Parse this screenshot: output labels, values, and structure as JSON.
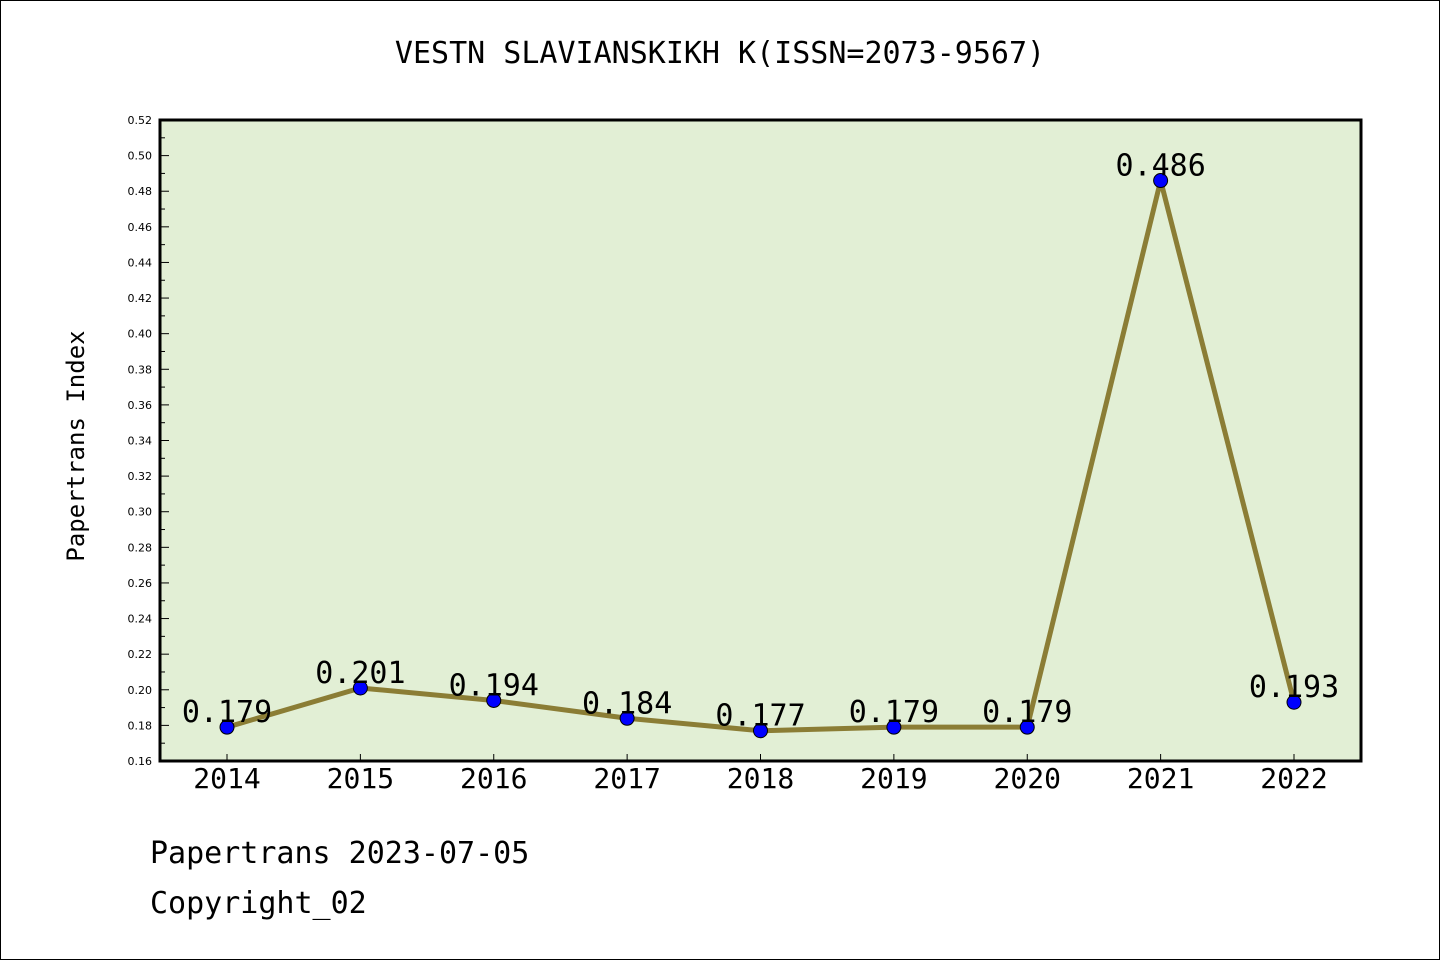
{
  "chart_data": {
    "type": "line",
    "title": "VESTN SLAVIANSKIKH K(ISSN=2073-9567)",
    "xlabel": "",
    "ylabel": "Papertrans Index",
    "categories": [
      "2014",
      "2015",
      "2016",
      "2017",
      "2018",
      "2019",
      "2020",
      "2021",
      "2022"
    ],
    "series": [
      {
        "values": [
          0.179,
          0.201,
          0.194,
          0.184,
          0.177,
          0.179,
          0.179,
          0.486,
          0.193
        ],
        "labels": [
          "0.179",
          "0.201",
          "0.194",
          "0.184",
          "0.177",
          "0.179",
          "0.179",
          "0.486",
          "0.193"
        ],
        "line_color": "#8B7D35",
        "marker_color": "#0000FF"
      }
    ],
    "ylim": [
      0.16,
      0.52
    ],
    "yticks": [
      "0.16",
      "0.18",
      "0.20",
      "0.22",
      "0.24",
      "0.26",
      "0.28",
      "0.30",
      "0.32",
      "0.34",
      "0.36",
      "0.38",
      "0.40",
      "0.42",
      "0.44",
      "0.46",
      "0.48",
      "0.50",
      "0.52"
    ],
    "plot_background": "#E2EFD5",
    "grid": false
  },
  "footer": {
    "date_line": "Papertrans 2023-07-05",
    "copyright": "Copyright_02"
  }
}
